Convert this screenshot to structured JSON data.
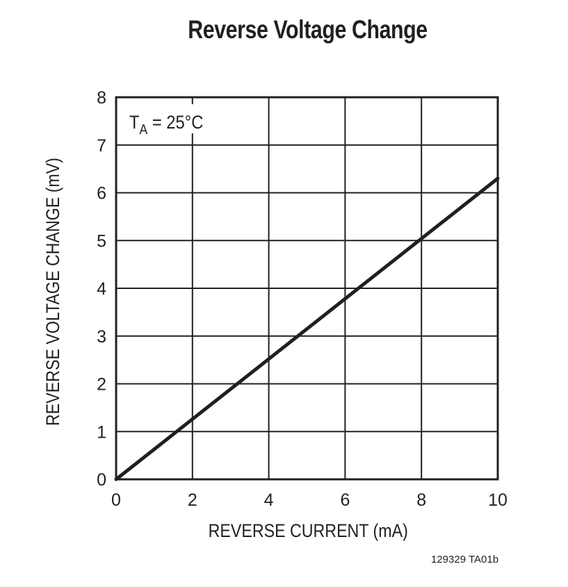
{
  "chart_data": {
    "type": "line",
    "title": "Reverse Voltage Change",
    "xlabel": "REVERSE CURRENT (mA)",
    "ylabel": "REVERSE VOLTAGE CHANGE (mV)",
    "xlim": [
      0,
      10
    ],
    "ylim": [
      0,
      8
    ],
    "x_ticks": [
      "0",
      "2",
      "4",
      "6",
      "8",
      "10"
    ],
    "y_ticks": [
      "0",
      "1",
      "2",
      "3",
      "4",
      "5",
      "6",
      "7",
      "8"
    ],
    "grid": true,
    "annotation": "TA = 25°C",
    "series": [
      {
        "name": "Reverse Voltage Change",
        "x": [
          0,
          10
        ],
        "y": [
          0,
          6.3
        ]
      }
    ]
  },
  "annotation": {
    "main": "T",
    "sub": "A",
    "rest": " = 25°C"
  },
  "footnote": "129329 TA01b",
  "colors": {
    "line": "#231f20",
    "grid": "#231f20"
  }
}
